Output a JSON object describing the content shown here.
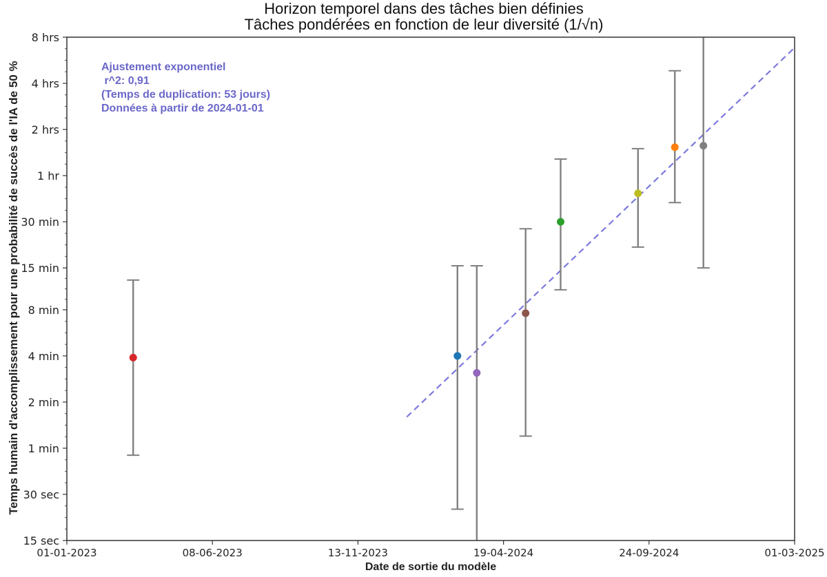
{
  "chart_data": {
    "type": "scatter",
    "title": "Horizon temporel dans des tâches bien définies",
    "subtitle": "Tâches pondérées en fonction de leur diversité (1/√n)",
    "xlabel": "Date de sortie du modèle",
    "ylabel": "Temps humain d'accomplissement pour une probabilité de succès de l'IA de 50 %",
    "x_ticks": [
      "01-01-2023",
      "08-06-2023",
      "13-11-2023",
      "19-04-2024",
      "24-09-2024",
      "01-03-2025"
    ],
    "y_ticks": [
      "8 hrs",
      "4 hrs",
      "2 hrs",
      "1 hr",
      "30 min",
      "15 min",
      "8 min",
      "4 min",
      "2 min",
      "1 min",
      "30 sec",
      "15 sec"
    ],
    "y_scale": "log2",
    "ylim_minutes": [
      0.25,
      480
    ],
    "xlim": [
      "2023-01-01",
      "2025-03-01"
    ],
    "grid": false,
    "legend": "none",
    "annotation": [
      "Ajustement exponentiel",
      " r^2: 0,91",
      "(Temps de duplication: 53 jours)",
      "Données à partir de 2024-01-01"
    ],
    "fit_line": {
      "style": "dashed",
      "color": "#7b78dd",
      "start": {
        "date": "2024-01-05",
        "minutes": 1.6
      },
      "end": {
        "date": "2025-03-01",
        "minutes": 410
      }
    },
    "points": [
      {
        "date": "2023-03-14",
        "minutes": 3.9,
        "ci_low": 0.9,
        "ci_high": 12.5,
        "color": "#d62728"
      },
      {
        "date": "2024-02-29",
        "minutes": 4.0,
        "ci_low": 0.4,
        "ci_high": 15.5,
        "color": "#1f77b4"
      },
      {
        "date": "2024-03-21",
        "minutes": 3.1,
        "ci_low": 0.25,
        "ci_high": 15.5,
        "color": "#9467bd"
      },
      {
        "date": "2024-05-13",
        "minutes": 7.6,
        "ci_low": 1.2,
        "ci_high": 27,
        "color": "#8c564b"
      },
      {
        "date": "2024-06-20",
        "minutes": 30,
        "ci_low": 10.8,
        "ci_high": 77,
        "color": "#2ca02c"
      },
      {
        "date": "2024-09-12",
        "minutes": 46,
        "ci_low": 20.5,
        "ci_high": 90,
        "color": "#bcbd22"
      },
      {
        "date": "2024-10-22",
        "minutes": 92,
        "ci_low": 40,
        "ci_high": 290,
        "color": "#ff7f0e"
      },
      {
        "date": "2024-11-22",
        "minutes": 94,
        "ci_low": 15,
        "ci_high": 480,
        "color": "#7f7f7f"
      }
    ]
  }
}
